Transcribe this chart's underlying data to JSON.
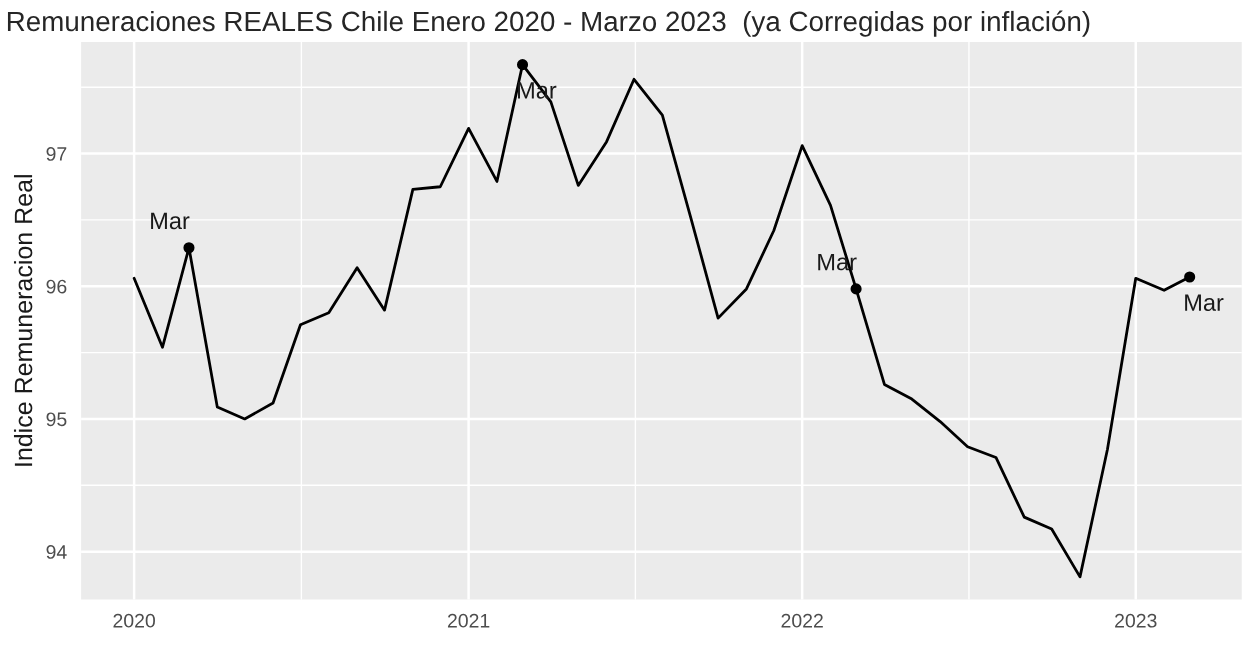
{
  "chart_data": {
    "type": "line",
    "title": "Remuneraciones REALES Chile Enero 2020 - Marzo 2023  (ya Corregidas por inflación)",
    "ylabel": "Indice Remuneracion Real",
    "x": [
      "2020-01",
      "2020-02",
      "2020-03",
      "2020-04",
      "2020-05",
      "2020-06",
      "2020-07",
      "2020-08",
      "2020-09",
      "2020-10",
      "2020-11",
      "2020-12",
      "2021-01",
      "2021-02",
      "2021-03",
      "2021-04",
      "2021-05",
      "2021-06",
      "2021-07",
      "2021-08",
      "2021-09",
      "2021-10",
      "2021-11",
      "2021-12",
      "2022-01",
      "2022-02",
      "2022-03",
      "2022-04",
      "2022-05",
      "2022-06",
      "2022-07",
      "2022-08",
      "2022-09",
      "2022-10",
      "2022-11",
      "2022-12",
      "2023-01",
      "2023-02",
      "2023-03"
    ],
    "series": [
      {
        "color": "#000000",
        "values": [
          96.06,
          95.54,
          96.29,
          95.09,
          95.0,
          95.12,
          95.71,
          95.8,
          96.14,
          95.82,
          96.73,
          96.75,
          97.19,
          96.79,
          97.67,
          97.39,
          96.76,
          97.09,
          97.56,
          97.29,
          96.52,
          95.76,
          95.98,
          96.42,
          97.06,
          96.61,
          95.98,
          95.26,
          95.15,
          94.98,
          94.79,
          94.71,
          94.26,
          94.17,
          93.81,
          94.77,
          96.06,
          95.97,
          96.07
        ]
      },
      {
        "type": "scatter",
        "color": "#000000",
        "x": [
          "2020-03",
          "2021-03",
          "2022-03",
          "2023-03"
        ],
        "values": [
          96.29,
          97.67,
          95.98,
          96.07
        ]
      }
    ],
    "annotations": [
      {
        "text": "Mar",
        "x": "2020-03",
        "y": 96.29
      },
      {
        "text": "Mar",
        "x": "2021-03",
        "y": 97.67
      },
      {
        "text": "Mar",
        "x": "2022-03",
        "y": 95.98
      },
      {
        "text": "Mar",
        "x": "2023-03",
        "y": 96.07
      }
    ],
    "xlim": [
      "2019-11-04",
      "2023-04-27"
    ],
    "ylim": [
      93.64,
      97.84
    ],
    "xticks": [
      {
        "value": "2020-01-01",
        "label": "2020"
      },
      {
        "value": "2021-01-01",
        "label": "2021"
      },
      {
        "value": "2022-01-01",
        "label": "2022"
      },
      {
        "value": "2023-01-01",
        "label": "2023"
      }
    ],
    "yticks": [
      94,
      95,
      96,
      97
    ],
    "grid": true,
    "legend": false
  }
}
